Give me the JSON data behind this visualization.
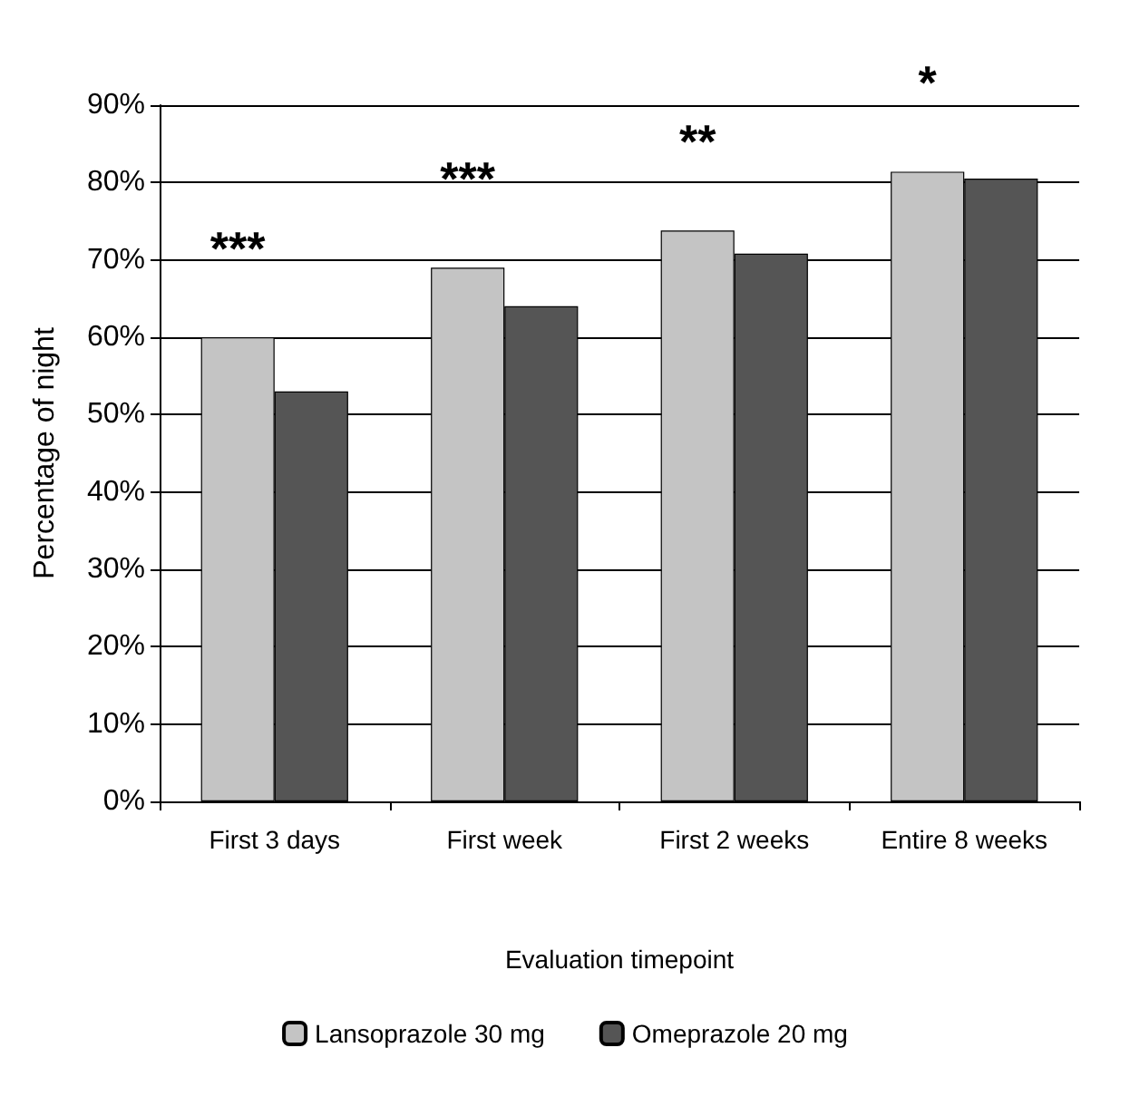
{
  "chart_data": {
    "type": "bar",
    "xlabel": "Evaluation timepoint",
    "ylabel": "Percentage of night",
    "categories": [
      "First 3 days",
      "First week",
      "First 2 weeks",
      "Entire 8 weeks"
    ],
    "series": [
      {
        "name": "Lansoprazole 30 mg",
        "color": "#c4c4c4",
        "values": [
          60,
          69,
          73.8,
          81.4
        ]
      },
      {
        "name": "Omeprazole 20 mg",
        "color": "#555555",
        "values": [
          53,
          64,
          70.8,
          80.5
        ]
      }
    ],
    "ylim": [
      0,
      90
    ],
    "yticks": [
      {
        "value": 0,
        "label": "0%"
      },
      {
        "value": 10,
        "label": "10%"
      },
      {
        "value": 20,
        "label": "20%"
      },
      {
        "value": 30,
        "label": "30%"
      },
      {
        "value": 40,
        "label": "40%"
      },
      {
        "value": 50,
        "label": "50%"
      },
      {
        "value": 60,
        "label": "60%"
      },
      {
        "value": 70,
        "label": "70%"
      },
      {
        "value": 80,
        "label": "80%"
      },
      {
        "value": 90,
        "label": "90%"
      }
    ],
    "grid": "y",
    "legend": "bottom",
    "annotations": [
      "***",
      "***",
      "**",
      "*"
    ]
  }
}
